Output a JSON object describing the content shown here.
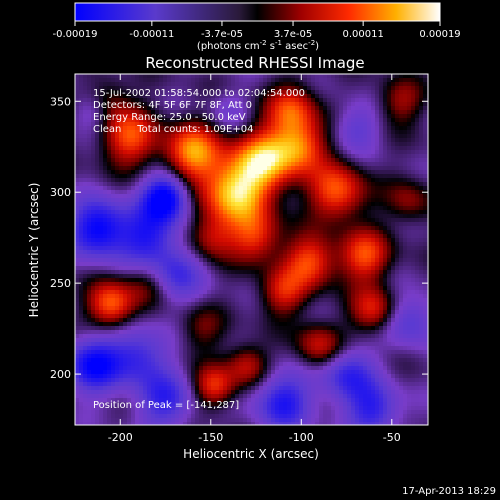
{
  "colorbar": {
    "tick_labels": [
      "-0.00019",
      "-0.00011",
      "-3.7e-05",
      "3.7e-05",
      "0.00011",
      "0.00019"
    ],
    "unit_main": "(photons cm",
    "unit_sup1": "-2",
    "unit_mid": " s",
    "unit_sup2": "-1",
    "unit_mid2": " asec",
    "unit_sup3": "-2",
    "unit_end": ")"
  },
  "chart_data": {
    "type": "heatmap",
    "title": "Reconstructed RHESSI Image",
    "xlabel": "Heliocentric X (arcsec)",
    "ylabel": "Heliocentric Y (arcsec)",
    "xlim": [
      -225,
      -30
    ],
    "ylim": [
      172,
      365
    ],
    "x_ticks": [
      -200,
      -150,
      -100,
      -50
    ],
    "y_ticks": [
      200,
      250,
      300,
      350
    ],
    "x_tick_labels": [
      "-200",
      "-150",
      "-100",
      "-50"
    ],
    "y_tick_labels": [
      "200",
      "250",
      "300",
      "350"
    ],
    "clim": [
      -0.00019,
      0.00019
    ],
    "peak_position": [
      -141,
      287
    ],
    "annotations": [
      "15-Jul-2002 01:58:54.000 to 02:04:54.000",
      "Detectors: 4F 5F 6F 7F 8F, Att 0",
      "Energy Range: 25.0 - 50.0 keV",
      "Clean     Total counts: 1.09E+04",
      "Position of Peak = [-141,287]"
    ],
    "footer": "17-Apr-2013 18:29",
    "sources": [
      {
        "x": -137,
        "y": 300,
        "amp": 1.0,
        "s": 13
      },
      {
        "x": -120,
        "y": 318,
        "amp": 0.9,
        "s": 12
      },
      {
        "x": -160,
        "y": 322,
        "amp": 0.85,
        "s": 11
      },
      {
        "x": -195,
        "y": 330,
        "amp": 0.7,
        "s": 11
      },
      {
        "x": -208,
        "y": 350,
        "amp": 0.4,
        "s": 9
      },
      {
        "x": -105,
        "y": 345,
        "amp": 0.65,
        "s": 10
      },
      {
        "x": -100,
        "y": 325,
        "amp": 0.7,
        "s": 10
      },
      {
        "x": -80,
        "y": 300,
        "amp": 0.75,
        "s": 11
      },
      {
        "x": -65,
        "y": 265,
        "amp": 0.7,
        "s": 10
      },
      {
        "x": -60,
        "y": 235,
        "amp": 0.6,
        "s": 9
      },
      {
        "x": -95,
        "y": 262,
        "amp": 0.7,
        "s": 10
      },
      {
        "x": -110,
        "y": 245,
        "amp": 0.55,
        "s": 9
      },
      {
        "x": -125,
        "y": 275,
        "amp": 0.6,
        "s": 10
      },
      {
        "x": -150,
        "y": 275,
        "amp": 0.45,
        "s": 9
      },
      {
        "x": -205,
        "y": 238,
        "amp": 0.8,
        "s": 9
      },
      {
        "x": -185,
        "y": 250,
        "amp": 0.35,
        "s": 9
      },
      {
        "x": -155,
        "y": 225,
        "amp": 0.3,
        "s": 9
      },
      {
        "x": -148,
        "y": 193,
        "amp": 0.65,
        "s": 8
      },
      {
        "x": -130,
        "y": 205,
        "amp": 0.5,
        "s": 8
      },
      {
        "x": -90,
        "y": 215,
        "amp": 0.55,
        "s": 9
      },
      {
        "x": -45,
        "y": 350,
        "amp": 0.4,
        "s": 9
      },
      {
        "x": -40,
        "y": 295,
        "amp": 0.35,
        "s": 9
      },
      {
        "x": -175,
        "y": 297,
        "amp": -0.95,
        "s": 9
      },
      {
        "x": -212,
        "y": 280,
        "amp": -0.85,
        "s": 11
      },
      {
        "x": -185,
        "y": 275,
        "amp": -0.6,
        "s": 11
      },
      {
        "x": -170,
        "y": 255,
        "amp": -0.5,
        "s": 11
      },
      {
        "x": -215,
        "y": 205,
        "amp": -0.75,
        "s": 11
      },
      {
        "x": -190,
        "y": 210,
        "amp": -0.55,
        "s": 11
      },
      {
        "x": -175,
        "y": 185,
        "amp": -0.55,
        "s": 11
      },
      {
        "x": -110,
        "y": 185,
        "amp": -0.65,
        "s": 11
      },
      {
        "x": -75,
        "y": 200,
        "amp": -0.55,
        "s": 11
      },
      {
        "x": -60,
        "y": 180,
        "amp": -0.6,
        "s": 10
      },
      {
        "x": -40,
        "y": 230,
        "amp": -0.45,
        "s": 10
      },
      {
        "x": -70,
        "y": 335,
        "amp": -0.35,
        "s": 9
      },
      {
        "x": -215,
        "y": 345,
        "amp": -0.4,
        "s": 8
      },
      {
        "x": -140,
        "y": 345,
        "amp": -0.2,
        "s": 8
      }
    ]
  }
}
